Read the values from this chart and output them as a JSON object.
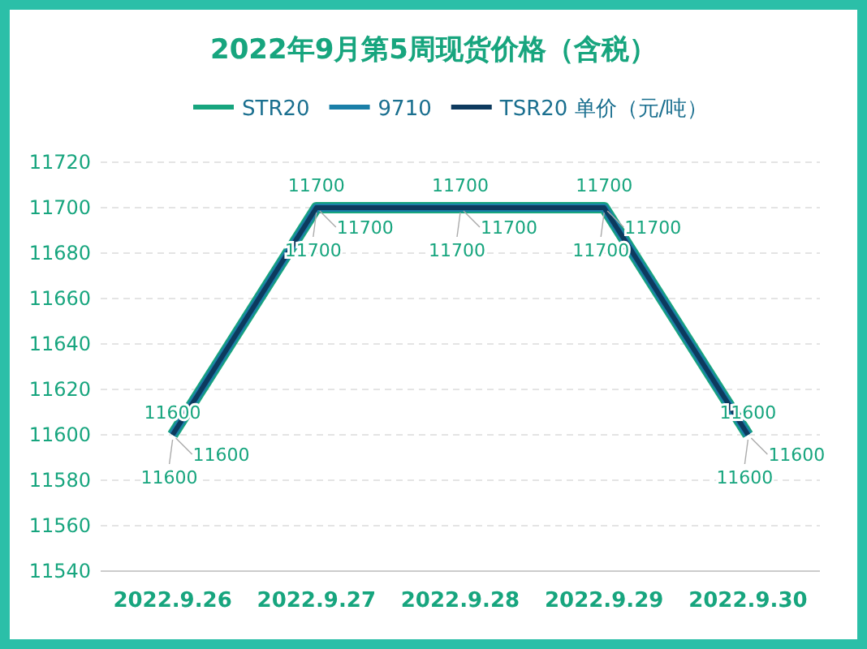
{
  "chart_data": {
    "type": "line",
    "title": "2022年9月第5周现货价格（含税）",
    "categories": [
      "2022.9.26",
      "2022.9.27",
      "2022.9.28",
      "2022.9.29",
      "2022.9.30"
    ],
    "series": [
      {
        "name": "STR20",
        "color": "#17a57e",
        "values": [
          11600,
          11700,
          11700,
          11700,
          11600
        ]
      },
      {
        "name": "9710",
        "color": "#1a7fa8",
        "values": [
          11600,
          11700,
          11700,
          11700,
          11600
        ]
      },
      {
        "name": "TSR20 单价（元/吨）",
        "color": "#0d3a5e",
        "values": [
          11600,
          11700,
          11700,
          11700,
          11600
        ]
      }
    ],
    "ylim": [
      11540,
      11720
    ],
    "yticks": [
      11540,
      11560,
      11580,
      11600,
      11620,
      11640,
      11660,
      11680,
      11700,
      11720
    ],
    "grid": "y",
    "legend": "top",
    "data_labels": true,
    "marker": "none",
    "line_style": "solid"
  }
}
